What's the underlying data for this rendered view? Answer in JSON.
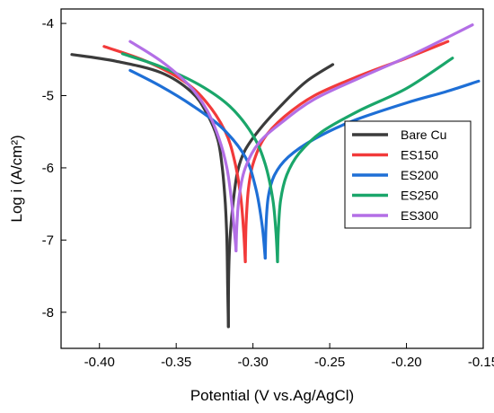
{
  "chart_data": {
    "type": "line",
    "xlabel": "Potential (V vs.Ag/AgCl)",
    "ylabel": "Log i (A/cm²)",
    "xlim": [
      -0.425,
      -0.15
    ],
    "ylim": [
      -8.5,
      -3.8
    ],
    "x_ticks": [
      {
        "value": -0.4,
        "label": "-0.40"
      },
      {
        "value": -0.35,
        "label": "-0.35"
      },
      {
        "value": -0.3,
        "label": "-0.30"
      },
      {
        "value": -0.25,
        "label": "-0.25"
      },
      {
        "value": -0.2,
        "label": "-0.20"
      },
      {
        "value": -0.15,
        "label": "-0.15"
      }
    ],
    "y_ticks": [
      {
        "value": -8,
        "label": "-8"
      },
      {
        "value": -7,
        "label": "-7"
      },
      {
        "value": -6,
        "label": "-6"
      },
      {
        "value": -5,
        "label": "-5"
      },
      {
        "value": -4,
        "label": "-4"
      }
    ],
    "legend_position": "right",
    "series": [
      {
        "name": "Bare Cu",
        "color": "#3b3b3b",
        "ecorr": -0.316,
        "cathodic": [
          [
            -0.418,
            -4.43
          ],
          [
            -0.39,
            -4.52
          ],
          [
            -0.36,
            -4.68
          ],
          [
            -0.34,
            -4.95
          ],
          [
            -0.33,
            -5.25
          ],
          [
            -0.323,
            -5.6
          ],
          [
            -0.32,
            -6.0
          ],
          [
            -0.318,
            -6.5
          ],
          [
            -0.317,
            -7.0
          ],
          [
            -0.3165,
            -7.6
          ],
          [
            -0.316,
            -8.2
          ]
        ],
        "anodic": [
          [
            -0.316,
            -8.2
          ],
          [
            -0.3158,
            -7.5
          ],
          [
            -0.315,
            -7.0
          ],
          [
            -0.313,
            -6.5
          ],
          [
            -0.31,
            -6.05
          ],
          [
            -0.305,
            -5.75
          ],
          [
            -0.295,
            -5.45
          ],
          [
            -0.28,
            -5.1
          ],
          [
            -0.265,
            -4.8
          ],
          [
            -0.248,
            -4.57
          ]
        ]
      },
      {
        "name": "ES150",
        "color": "#f23a3a",
        "ecorr": -0.305,
        "cathodic": [
          [
            -0.397,
            -4.32
          ],
          [
            -0.37,
            -4.52
          ],
          [
            -0.345,
            -4.8
          ],
          [
            -0.33,
            -5.1
          ],
          [
            -0.318,
            -5.5
          ],
          [
            -0.312,
            -5.9
          ],
          [
            -0.308,
            -6.4
          ],
          [
            -0.306,
            -6.9
          ],
          [
            -0.305,
            -7.3
          ]
        ],
        "anodic": [
          [
            -0.305,
            -7.3
          ],
          [
            -0.3045,
            -6.8
          ],
          [
            -0.303,
            -6.3
          ],
          [
            -0.3,
            -5.95
          ],
          [
            -0.293,
            -5.6
          ],
          [
            -0.28,
            -5.3
          ],
          [
            -0.26,
            -5.0
          ],
          [
            -0.23,
            -4.72
          ],
          [
            -0.2,
            -4.48
          ],
          [
            -0.173,
            -4.25
          ]
        ]
      },
      {
        "name": "ES200",
        "color": "#1e6fd6",
        "ecorr": -0.292,
        "cathodic": [
          [
            -0.38,
            -4.65
          ],
          [
            -0.36,
            -4.87
          ],
          [
            -0.34,
            -5.13
          ],
          [
            -0.32,
            -5.45
          ],
          [
            -0.305,
            -5.85
          ],
          [
            -0.298,
            -6.3
          ],
          [
            -0.294,
            -6.8
          ],
          [
            -0.292,
            -7.25
          ]
        ],
        "anodic": [
          [
            -0.292,
            -7.25
          ],
          [
            -0.2915,
            -6.8
          ],
          [
            -0.29,
            -6.4
          ],
          [
            -0.286,
            -6.1
          ],
          [
            -0.277,
            -5.85
          ],
          [
            -0.26,
            -5.6
          ],
          [
            -0.235,
            -5.35
          ],
          [
            -0.2,
            -5.1
          ],
          [
            -0.175,
            -4.95
          ],
          [
            -0.153,
            -4.8
          ]
        ]
      },
      {
        "name": "ES250",
        "color": "#1aa66a",
        "ecorr": -0.284,
        "cathodic": [
          [
            -0.385,
            -4.42
          ],
          [
            -0.36,
            -4.6
          ],
          [
            -0.335,
            -4.85
          ],
          [
            -0.315,
            -5.15
          ],
          [
            -0.3,
            -5.55
          ],
          [
            -0.292,
            -5.95
          ],
          [
            -0.287,
            -6.45
          ],
          [
            -0.285,
            -6.9
          ],
          [
            -0.284,
            -7.3
          ]
        ],
        "anodic": [
          [
            -0.284,
            -7.3
          ],
          [
            -0.2835,
            -6.9
          ],
          [
            -0.282,
            -6.45
          ],
          [
            -0.278,
            -6.1
          ],
          [
            -0.27,
            -5.8
          ],
          [
            -0.255,
            -5.5
          ],
          [
            -0.23,
            -5.2
          ],
          [
            -0.2,
            -4.9
          ],
          [
            -0.17,
            -4.48
          ]
        ]
      },
      {
        "name": "ES300",
        "color": "#b36fe6",
        "ecorr": -0.311,
        "cathodic": [
          [
            -0.38,
            -4.25
          ],
          [
            -0.36,
            -4.52
          ],
          [
            -0.342,
            -4.85
          ],
          [
            -0.33,
            -5.2
          ],
          [
            -0.322,
            -5.6
          ],
          [
            -0.317,
            -6.0
          ],
          [
            -0.314,
            -6.45
          ],
          [
            -0.312,
            -6.9
          ],
          [
            -0.311,
            -7.15
          ]
        ],
        "anodic": [
          [
            -0.311,
            -7.15
          ],
          [
            -0.3105,
            -6.8
          ],
          [
            -0.309,
            -6.4
          ],
          [
            -0.305,
            -6.0
          ],
          [
            -0.296,
            -5.65
          ],
          [
            -0.28,
            -5.35
          ],
          [
            -0.26,
            -5.05
          ],
          [
            -0.23,
            -4.75
          ],
          [
            -0.195,
            -4.42
          ],
          [
            -0.157,
            -4.02
          ]
        ]
      }
    ]
  }
}
